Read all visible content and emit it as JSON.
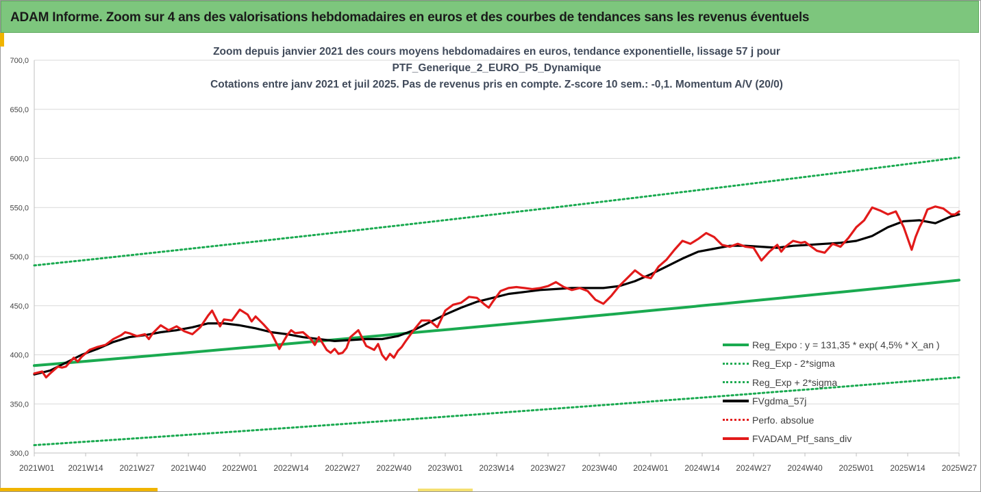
{
  "header": {
    "title": "ADAM Informe. Zoom sur 4 ans des valorisations hebdomadaires en euros et des courbes de tendances sans les revenus éventuels"
  },
  "chart_data": {
    "type": "line",
    "title_lines": [
      "Zoom depuis janvier 2021 des cours moyens hebdomadaires  en euros, tendance exponentielle, lissage 57 j pour",
      "PTF_Generique_2_EURO_P5_Dynamique",
      "Cotations entre janv 2021 et juil 2025. Pas de revenus pris en compte. Z-score 10 sem.: -0,1. Momentum A/V (20/0)"
    ],
    "ylim": [
      300,
      700
    ],
    "yticks": [
      "300,0",
      "350,0",
      "400,0",
      "450,0",
      "500,0",
      "550,0",
      "600,0",
      "650,0",
      "700,0"
    ],
    "yticks_values": [
      300,
      350,
      400,
      450,
      500,
      550,
      600,
      650,
      700
    ],
    "x_weeks_total": 234,
    "xticks": [
      {
        "w": 0,
        "label": "2021W01"
      },
      {
        "w": 13,
        "label": "2021W14"
      },
      {
        "w": 26,
        "label": "2021W27"
      },
      {
        "w": 39,
        "label": "2021W40"
      },
      {
        "w": 52,
        "label": "2022W01"
      },
      {
        "w": 65,
        "label": "2022W14"
      },
      {
        "w": 78,
        "label": "2022W27"
      },
      {
        "w": 91,
        "label": "2022W40"
      },
      {
        "w": 104,
        "label": "2023W01"
      },
      {
        "w": 117,
        "label": "2023W14"
      },
      {
        "w": 130,
        "label": "2023W27"
      },
      {
        "w": 143,
        "label": "2023W40"
      },
      {
        "w": 156,
        "label": "2024W01"
      },
      {
        "w": 169,
        "label": "2024W14"
      },
      {
        "w": 182,
        "label": "2024W27"
      },
      {
        "w": 195,
        "label": "2024W40"
      },
      {
        "w": 208,
        "label": "2025W01"
      },
      {
        "w": 221,
        "label": "2025W14"
      },
      {
        "w": 234,
        "label": "2025W27"
      }
    ],
    "grid": "horizontal",
    "legend_position": "bottom-right",
    "series": [
      {
        "name": "Reg_Expo : y = 131,35 * exp( 4,5% *  X_an )",
        "style": "solid",
        "color": "#1aaa50",
        "x": [
          0,
          234
        ],
        "values": [
          389,
          476
        ]
      },
      {
        "name": "Reg_Exp - 2*sigma",
        "style": "dotted",
        "color": "#1aaa50",
        "x": [
          0,
          234
        ],
        "values": [
          308,
          377
        ]
      },
      {
        "name": "Reg_Exp + 2*sigma",
        "style": "dotted",
        "color": "#1aaa50",
        "x": [
          0,
          234
        ],
        "values": [
          491,
          601
        ]
      },
      {
        "name": "FVgdma_57j",
        "style": "solid",
        "color": "#000000",
        "x": [
          0,
          4,
          8,
          12,
          16,
          20,
          24,
          28,
          32,
          36,
          40,
          44,
          48,
          52,
          56,
          60,
          64,
          68,
          72,
          76,
          80,
          84,
          88,
          92,
          96,
          100,
          104,
          108,
          112,
          116,
          120,
          124,
          128,
          132,
          136,
          140,
          144,
          148,
          152,
          156,
          160,
          164,
          168,
          172,
          176,
          180,
          184,
          188,
          192,
          196,
          200,
          204,
          208,
          212,
          216,
          220,
          224,
          228,
          232,
          234
        ],
        "values": [
          380,
          384,
          392,
          400,
          406,
          413,
          418,
          420,
          423,
          425,
          428,
          432,
          432,
          430,
          427,
          423,
          421,
          418,
          416,
          414,
          415,
          416,
          416,
          419,
          425,
          433,
          441,
          448,
          454,
          458,
          462,
          464,
          466,
          467,
          468,
          468,
          468,
          470,
          475,
          482,
          490,
          498,
          505,
          508,
          511,
          511,
          510,
          509,
          511,
          512,
          513,
          514,
          516,
          521,
          530,
          536,
          537,
          534,
          541,
          543
        ]
      },
      {
        "name": "Perfo. absolue",
        "style": "dotted",
        "color": "#e21a1a",
        "x": [],
        "values": []
      },
      {
        "name": "FVADAM_Ptf_sans_div",
        "style": "solid",
        "color": "#e21a1a",
        "x": [
          0,
          2,
          3,
          4,
          6,
          7,
          8,
          10,
          11,
          12,
          14,
          16,
          18,
          20,
          22,
          23,
          24,
          26,
          28,
          29,
          30,
          32,
          34,
          36,
          38,
          40,
          42,
          44,
          45,
          46,
          47,
          48,
          50,
          52,
          54,
          55,
          56,
          58,
          60,
          62,
          64,
          65,
          66,
          68,
          70,
          71,
          72,
          74,
          75,
          76,
          77,
          78,
          79,
          80,
          82,
          84,
          86,
          87,
          88,
          89,
          90,
          91,
          92,
          93,
          94,
          96,
          98,
          100,
          102,
          104,
          106,
          108,
          110,
          112,
          114,
          115,
          116,
          118,
          120,
          122,
          124,
          126,
          128,
          130,
          132,
          134,
          136,
          138,
          140,
          142,
          144,
          146,
          148,
          150,
          152,
          154,
          156,
          158,
          160,
          162,
          164,
          166,
          168,
          170,
          172,
          174,
          176,
          178,
          180,
          182,
          184,
          186,
          188,
          189,
          190,
          192,
          194,
          195,
          196,
          198,
          200,
          202,
          204,
          206,
          208,
          210,
          212,
          214,
          216,
          218,
          220,
          222,
          223,
          224,
          225,
          226,
          228,
          230,
          232,
          233,
          234
        ],
        "values": [
          381,
          383,
          377,
          381,
          388,
          387,
          388,
          397,
          393,
          398,
          405,
          408,
          410,
          416,
          420,
          423,
          422,
          419,
          421,
          416,
          422,
          430,
          425,
          429,
          424,
          421,
          428,
          440,
          445,
          437,
          429,
          436,
          435,
          446,
          441,
          434,
          439,
          431,
          422,
          406,
          420,
          425,
          422,
          423,
          416,
          410,
          418,
          405,
          402,
          406,
          401,
          402,
          407,
          418,
          425,
          409,
          405,
          411,
          400,
          395,
          401,
          397,
          404,
          408,
          414,
          425,
          435,
          435,
          428,
          445,
          451,
          453,
          459,
          458,
          451,
          448,
          454,
          465,
          468,
          469,
          468,
          467,
          468,
          470,
          474,
          469,
          466,
          468,
          465,
          456,
          452,
          460,
          470,
          478,
          486,
          480,
          478,
          490,
          497,
          507,
          516,
          513,
          518,
          524,
          520,
          512,
          510,
          513,
          510,
          509,
          496,
          505,
          512,
          505,
          510,
          516,
          514,
          515,
          512,
          506,
          504,
          513,
          510,
          519,
          530,
          537,
          550,
          547,
          543,
          546,
          530,
          507,
          520,
          530,
          538,
          548,
          551,
          549,
          543,
          543,
          546
        ]
      }
    ]
  }
}
